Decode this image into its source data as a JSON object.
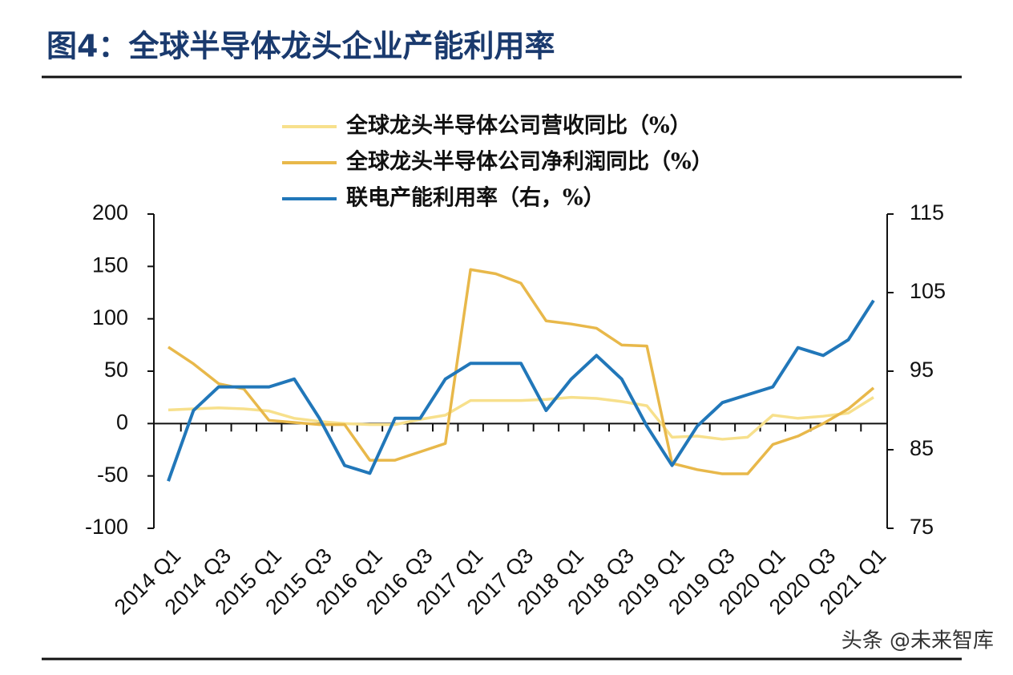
{
  "chart_data": {
    "type": "line",
    "title": "图4：全球半导体龙头企业产能利用率",
    "watermark": "头条 @未来智库",
    "categories": [
      "2014 Q1",
      null,
      "2014 Q3",
      null,
      "2015 Q1",
      null,
      "2015 Q3",
      null,
      "2016 Q1",
      null,
      "2016 Q3",
      null,
      "2017 Q1",
      null,
      "2017 Q3",
      null,
      "2018 Q1",
      null,
      "2018 Q3",
      null,
      "2019 Q1",
      null,
      "2019 Q3",
      null,
      "2020 Q1",
      null,
      "2020 Q3",
      null,
      "2021 Q1"
    ],
    "series": [
      {
        "name": "全球龙头半导体公司营收同比（%）",
        "color": "#f7e08c",
        "values": [
          13,
          14,
          15,
          14,
          12,
          5,
          2,
          0,
          -1,
          -1,
          4,
          8,
          22,
          22,
          22,
          23,
          25,
          24,
          21,
          17,
          -13,
          -12,
          -15,
          -13,
          8,
          5,
          7,
          10,
          25
        ]
      },
      {
        "name": "全球龙头半导体公司净利润同比（%）",
        "color": "#e8b84a",
        "values": [
          73,
          57,
          38,
          33,
          3,
          1,
          -1,
          -1,
          -35,
          -35,
          -27,
          -19,
          147,
          143,
          134,
          98,
          95,
          91,
          75,
          74,
          -38,
          -44,
          -48,
          -48,
          -20,
          -12,
          0,
          14,
          34
        ]
      },
      {
        "name": "联电产能利用率（右，%）",
        "color": "#2177b9",
        "axis": "y2",
        "values": [
          81,
          90,
          93,
          93,
          93,
          94,
          89,
          83,
          82,
          89,
          89,
          94,
          96,
          96,
          96,
          90,
          94,
          97,
          94,
          88,
          83,
          88,
          91,
          92,
          93,
          98,
          97,
          99,
          104
        ]
      }
    ],
    "ylim": [
      -100,
      200
    ],
    "yticks": [
      -100,
      -50,
      0,
      50,
      100,
      150,
      200
    ],
    "y2lim": [
      75,
      115
    ],
    "y2ticks": [
      75,
      85,
      95,
      105,
      115
    ]
  }
}
